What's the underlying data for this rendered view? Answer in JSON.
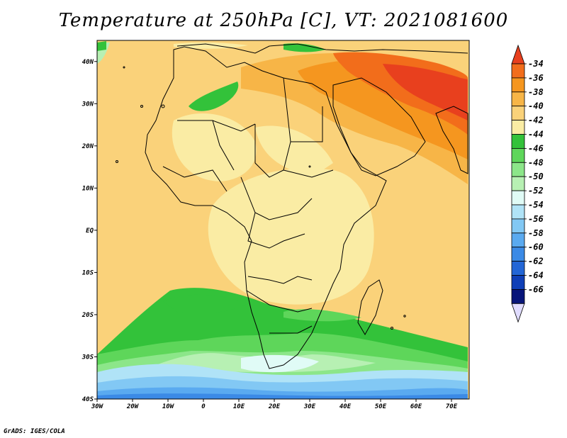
{
  "title": "Temperature at 250hPa [C], VT: 2021081600",
  "credit": "GrADS: IGES/COLA",
  "axes": {
    "lon_ticks": [
      "30W",
      "20W",
      "10W",
      "0",
      "10E",
      "20E",
      "30E",
      "40E",
      "50E",
      "60E",
      "70E"
    ],
    "lat_ticks": [
      "40N",
      "30N",
      "20N",
      "10N",
      "EQ",
      "10S",
      "20S",
      "30S",
      "40S"
    ],
    "lon_range": [
      -30,
      75
    ],
    "lat_range": [
      -40,
      45
    ]
  },
  "colorbar": {
    "levels": [
      "-34",
      "-36",
      "-38",
      "-40",
      "-42",
      "-44",
      "-46",
      "-48",
      "-50",
      "-52",
      "-54",
      "-56",
      "-58",
      "-60",
      "-62",
      "-64",
      "-66"
    ],
    "colors": [
      "#e8401e",
      "#f26d1b",
      "#f5961f",
      "#f7b547",
      "#fad27a",
      "#faeca4",
      "#33c23a",
      "#5ed65a",
      "#8ce689",
      "#b7f0b3",
      "#e0fbf6",
      "#b0e3f7",
      "#82c8f4",
      "#5aaaf0",
      "#3b8ae6",
      "#2366d6",
      "#0f3fb7",
      "#07157a"
    ],
    "over_color": "#e8401e",
    "under_color": "#e0dcff"
  }
}
